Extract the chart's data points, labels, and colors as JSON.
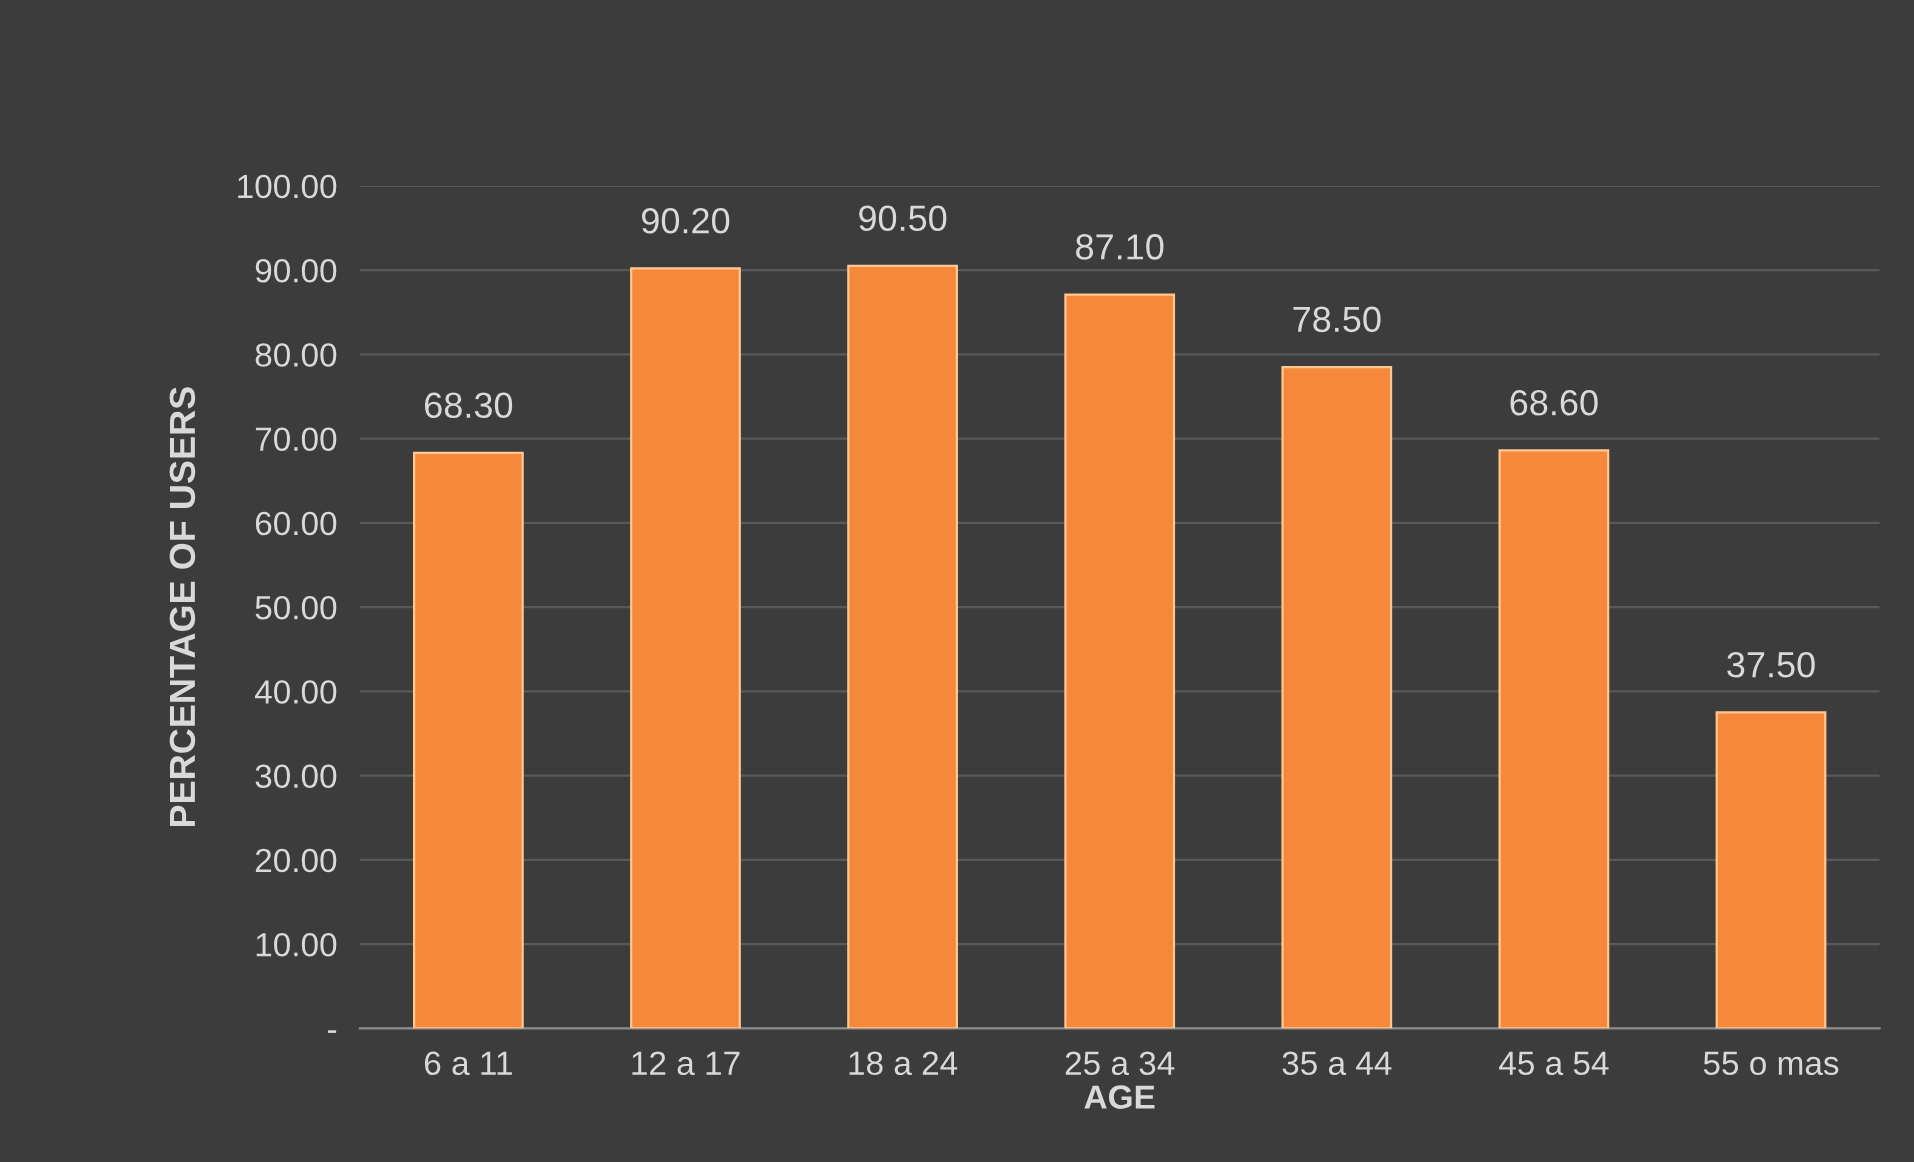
{
  "chart_data": {
    "type": "bar",
    "xlabel": "AGE",
    "ylabel": "PERCENTAGE OF USERS",
    "categories": [
      "6 a 11",
      "12 a 17",
      "18 a 24",
      "25 a 34",
      "35 a 44",
      "45 a 54",
      "55 o mas"
    ],
    "values": [
      68.3,
      90.2,
      90.5,
      87.1,
      78.5,
      68.6,
      37.5
    ],
    "value_labels": [
      "68.30",
      "90.20",
      "90.50",
      "87.10",
      "78.50",
      "68.60",
      "37.50"
    ],
    "color": "#f5883a",
    "ylim": [
      0,
      100
    ],
    "yticks": [
      {
        "value": 0,
        "label": "-"
      },
      {
        "value": 10,
        "label": "10.00"
      },
      {
        "value": 20,
        "label": "20.00"
      },
      {
        "value": 30,
        "label": "30.00"
      },
      {
        "value": 40,
        "label": "40.00"
      },
      {
        "value": 50,
        "label": "50.00"
      },
      {
        "value": 60,
        "label": "60.00"
      },
      {
        "value": 70,
        "label": "70.00"
      },
      {
        "value": 80,
        "label": "80.00"
      },
      {
        "value": 90,
        "label": "90.00"
      },
      {
        "value": 100,
        "label": "100.00"
      }
    ],
    "grid": "y",
    "legend": false
  }
}
